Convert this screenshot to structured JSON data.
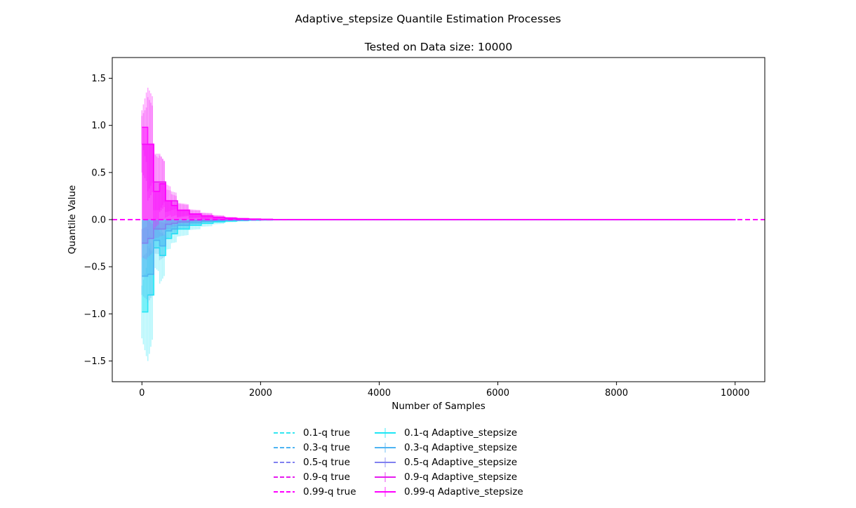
{
  "suptitle": "Adaptive_stepsize Quantile Estimation Processes",
  "title": "Tested on Data size: 10000",
  "chart_data": {
    "type": "line",
    "xlabel": "Number of Samples",
    "ylabel": "Quantile Value",
    "xlim": [
      -500,
      10500
    ],
    "ylim": [
      -1.72,
      1.72
    ],
    "xticks": [
      0,
      2000,
      4000,
      6000,
      8000,
      10000
    ],
    "xtick_labels": [
      "0",
      "2000",
      "4000",
      "6000",
      "8000",
      "10000"
    ],
    "yticks": [
      1.5,
      1.0,
      0.5,
      0.0,
      -0.5,
      -1.0,
      -1.5
    ],
    "ytick_labels": [
      "1.5",
      "1.0",
      "0.5",
      "0.0",
      "−0.5",
      "−1.0",
      "−1.5"
    ],
    "grid": false,
    "legend_placement": "below plot, two columns",
    "true_lines": [
      {
        "name": "0.1-q true",
        "value": 0.0,
        "color": "#33e6f0"
      },
      {
        "name": "0.3-q true",
        "value": 0.0,
        "color": "#4db3f2"
      },
      {
        "name": "0.5-q true",
        "value": 0.0,
        "color": "#8080f0"
      },
      {
        "name": "0.9-q true",
        "value": 0.0,
        "color": "#e61aef"
      },
      {
        "name": "0.99-q true",
        "value": 0.0,
        "color": "#ff00ff"
      }
    ],
    "series": [
      {
        "name": "0.1-q Adaptive_stepsize",
        "color": "#1ee6f5",
        "x": [
          0,
          100,
          200,
          300,
          400,
          500,
          600,
          800,
          1000,
          1200,
          1400,
          1600,
          1800,
          2000,
          2200,
          2500,
          10000
        ],
        "y": [
          -0.98,
          -0.8,
          -0.3,
          -0.38,
          -0.2,
          -0.15,
          -0.1,
          -0.06,
          -0.04,
          -0.025,
          -0.015,
          -0.01,
          -0.006,
          -0.003,
          -0.001,
          0.0,
          0.0
        ],
        "err": [
          0.28,
          0.7,
          0.2,
          0.3,
          0.12,
          0.1,
          0.08,
          0.05,
          0.035,
          0.025,
          0.015,
          0.01,
          0.006,
          0.003,
          0.002,
          0.0,
          0.0
        ]
      },
      {
        "name": "0.3-q Adaptive_stepsize",
        "color": "#4db3f2",
        "x": [
          0,
          100,
          200,
          300,
          400,
          500,
          600,
          800,
          1000,
          1200,
          1400,
          1600,
          1800,
          2000,
          10000
        ],
        "y": [
          -0.6,
          -0.58,
          -0.22,
          -0.28,
          -0.12,
          -0.1,
          -0.06,
          -0.035,
          -0.02,
          -0.012,
          -0.007,
          -0.004,
          -0.002,
          -0.001,
          0.0
        ],
        "err": [
          0.2,
          0.3,
          0.14,
          0.15,
          0.08,
          0.06,
          0.04,
          0.025,
          0.015,
          0.01,
          0.006,
          0.004,
          0.002,
          0.001,
          0.0
        ]
      },
      {
        "name": "0.5-q Adaptive_stepsize",
        "color": "#8080f0",
        "x": [
          0,
          100,
          200,
          300,
          400,
          500,
          600,
          800,
          1000,
          1200,
          10000
        ],
        "y": [
          -0.25,
          -0.2,
          -0.1,
          -0.1,
          -0.05,
          -0.04,
          -0.025,
          -0.012,
          -0.006,
          -0.002,
          0.0
        ],
        "err": [
          0.15,
          0.2,
          0.1,
          0.08,
          0.05,
          0.04,
          0.025,
          0.012,
          0.006,
          0.002,
          0.0
        ]
      },
      {
        "name": "0.9-q Adaptive_stepsize",
        "color": "#e61aef",
        "x": [
          0,
          100,
          200,
          300,
          400,
          500,
          600,
          800,
          1000,
          1200,
          1400,
          1600,
          1800,
          2000,
          2200,
          10000
        ],
        "y": [
          0.8,
          0.8,
          0.4,
          0.4,
          0.2,
          0.2,
          0.1,
          0.06,
          0.04,
          0.025,
          0.015,
          0.01,
          0.006,
          0.003,
          0.001,
          0.0
        ],
        "err": [
          0.3,
          0.5,
          0.3,
          0.3,
          0.12,
          0.1,
          0.07,
          0.04,
          0.03,
          0.02,
          0.012,
          0.008,
          0.004,
          0.002,
          0.001,
          0.0
        ]
      },
      {
        "name": "0.99-q Adaptive_stepsize",
        "color": "#ff00ff",
        "x": [
          0,
          100,
          200,
          300,
          400,
          500,
          600,
          800,
          1000,
          1200,
          1400,
          1600,
          1800,
          2000,
          2200,
          2500,
          10000
        ],
        "y": [
          0.98,
          0.8,
          0.3,
          0.38,
          0.2,
          0.15,
          0.1,
          0.06,
          0.04,
          0.025,
          0.015,
          0.01,
          0.006,
          0.003,
          0.001,
          0.0,
          0.0
        ],
        "err": [
          0.18,
          0.6,
          0.4,
          0.3,
          0.18,
          0.12,
          0.08,
          0.05,
          0.035,
          0.025,
          0.015,
          0.01,
          0.006,
          0.003,
          0.002,
          0.0,
          0.0
        ]
      }
    ]
  },
  "legend": {
    "left": [
      {
        "label": "0.1-q true",
        "color": "#33e6f0",
        "style": "dashed"
      },
      {
        "label": "0.3-q true",
        "color": "#4db3f2",
        "style": "dashed"
      },
      {
        "label": "0.5-q true",
        "color": "#8080f0",
        "style": "dashed"
      },
      {
        "label": "0.9-q true",
        "color": "#e61aef",
        "style": "dashed"
      },
      {
        "label": "0.99-q true",
        "color": "#ff00ff",
        "style": "dashed"
      }
    ],
    "right": [
      {
        "label": "0.1-q Adaptive_stepsize",
        "color": "#1ee6f5",
        "style": "errorbar"
      },
      {
        "label": "0.3-q Adaptive_stepsize",
        "color": "#4db3f2",
        "style": "errorbar"
      },
      {
        "label": "0.5-q Adaptive_stepsize",
        "color": "#8080f0",
        "style": "errorbar"
      },
      {
        "label": "0.9-q Adaptive_stepsize",
        "color": "#e61aef",
        "style": "errorbar"
      },
      {
        "label": "0.99-q Adaptive_stepsize",
        "color": "#ff00ff",
        "style": "errorbar"
      }
    ]
  }
}
